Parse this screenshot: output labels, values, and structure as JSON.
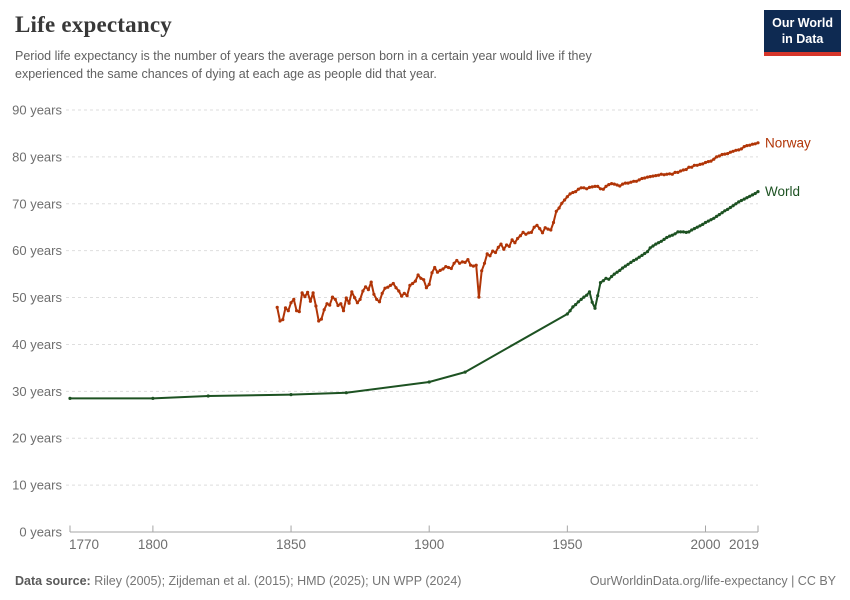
{
  "header": {
    "title": "Life expectancy",
    "subtitle": "Period life expectancy is the number of years the average person born in a certain year would live if they experienced the same chances of dying at each age as people did that year.",
    "logo": {
      "line1": "Our World",
      "line2": "in Data",
      "bg_color": "#0e2a52",
      "accent_color": "#d6352a"
    }
  },
  "footer": {
    "data_source_label": "Data source:",
    "data_source_text": " Riley (2005); Zijdeman et al. (2015); HMD (2025); UN WPP (2024)",
    "attribution": "OurWorldinData.org/life-expectancy | CC BY"
  },
  "chart_data": {
    "type": "line",
    "title": "Life expectancy",
    "xlabel": "",
    "ylabel": "",
    "grid": "dashed-horizontal",
    "legend_position": "line-end-labels",
    "x_axis": {
      "range": [
        1770,
        2019
      ],
      "ticks": [
        1770,
        1800,
        1850,
        1900,
        1950,
        2000,
        2019
      ]
    },
    "y_axis": {
      "range": [
        0,
        90
      ],
      "tick_values": [
        0,
        10,
        20,
        30,
        40,
        50,
        60,
        70,
        80,
        90
      ],
      "tick_suffix": " years"
    },
    "series": [
      {
        "name": "Norway",
        "color": "#b13507",
        "points": [
          [
            1845,
            47.9
          ],
          [
            1846,
            45.0
          ],
          [
            1847,
            45.3
          ],
          [
            1848,
            47.8
          ],
          [
            1849,
            47.2
          ],
          [
            1850,
            48.9
          ],
          [
            1851,
            49.6
          ],
          [
            1852,
            47.2
          ],
          [
            1853,
            47.0
          ],
          [
            1854,
            51.0
          ],
          [
            1855,
            50.2
          ],
          [
            1856,
            51.1
          ],
          [
            1857,
            49.2
          ],
          [
            1858,
            51.0
          ],
          [
            1859,
            48.2
          ],
          [
            1860,
            45.0
          ],
          [
            1861,
            45.4
          ],
          [
            1862,
            47.4
          ],
          [
            1863,
            48.7
          ],
          [
            1864,
            48.4
          ],
          [
            1865,
            50.1
          ],
          [
            1866,
            49.6
          ],
          [
            1867,
            48.3
          ],
          [
            1868,
            48.7
          ],
          [
            1869,
            47.2
          ],
          [
            1870,
            49.9
          ],
          [
            1871,
            48.8
          ],
          [
            1872,
            51.2
          ],
          [
            1873,
            50.0
          ],
          [
            1874,
            48.9
          ],
          [
            1875,
            49.6
          ],
          [
            1876,
            51.4
          ],
          [
            1877,
            52.3
          ],
          [
            1878,
            51.7
          ],
          [
            1879,
            53.3
          ],
          [
            1880,
            50.7
          ],
          [
            1881,
            49.6
          ],
          [
            1882,
            49.1
          ],
          [
            1883,
            50.9
          ],
          [
            1884,
            52.0
          ],
          [
            1885,
            52.2
          ],
          [
            1886,
            52.6
          ],
          [
            1887,
            53.0
          ],
          [
            1888,
            52.1
          ],
          [
            1889,
            51.4
          ],
          [
            1890,
            50.3
          ],
          [
            1891,
            50.9
          ],
          [
            1892,
            50.4
          ],
          [
            1893,
            52.6
          ],
          [
            1894,
            53.0
          ],
          [
            1895,
            53.5
          ],
          [
            1896,
            54.8
          ],
          [
            1897,
            54.1
          ],
          [
            1898,
            53.8
          ],
          [
            1899,
            52.1
          ],
          [
            1900,
            52.8
          ],
          [
            1901,
            55.3
          ],
          [
            1902,
            56.4
          ],
          [
            1903,
            55.4
          ],
          [
            1904,
            55.8
          ],
          [
            1905,
            56.1
          ],
          [
            1906,
            56.6
          ],
          [
            1907,
            56.4
          ],
          [
            1908,
            56.2
          ],
          [
            1909,
            57.3
          ],
          [
            1910,
            57.9
          ],
          [
            1911,
            57.3
          ],
          [
            1912,
            57.6
          ],
          [
            1913,
            57.5
          ],
          [
            1914,
            58.1
          ],
          [
            1915,
            56.9
          ],
          [
            1916,
            56.7
          ],
          [
            1917,
            56.9
          ],
          [
            1918,
            50.1
          ],
          [
            1919,
            55.7
          ],
          [
            1920,
            57.3
          ],
          [
            1921,
            59.3
          ],
          [
            1922,
            58.9
          ],
          [
            1923,
            59.9
          ],
          [
            1924,
            59.6
          ],
          [
            1925,
            60.7
          ],
          [
            1926,
            61.4
          ],
          [
            1927,
            60.3
          ],
          [
            1928,
            61.2
          ],
          [
            1929,
            60.9
          ],
          [
            1930,
            62.3
          ],
          [
            1931,
            61.7
          ],
          [
            1932,
            62.6
          ],
          [
            1933,
            63.2
          ],
          [
            1934,
            63.9
          ],
          [
            1935,
            63.5
          ],
          [
            1936,
            63.8
          ],
          [
            1937,
            63.9
          ],
          [
            1938,
            65.0
          ],
          [
            1939,
            65.4
          ],
          [
            1940,
            64.7
          ],
          [
            1941,
            63.8
          ],
          [
            1942,
            64.9
          ],
          [
            1943,
            64.6
          ],
          [
            1944,
            64.4
          ],
          [
            1945,
            66.0
          ],
          [
            1946,
            68.4
          ],
          [
            1947,
            69.1
          ],
          [
            1948,
            70.1
          ],
          [
            1949,
            70.8
          ],
          [
            1950,
            71.5
          ],
          [
            1951,
            72.1
          ],
          [
            1952,
            72.4
          ],
          [
            1953,
            72.6
          ],
          [
            1954,
            73.1
          ],
          [
            1955,
            73.4
          ],
          [
            1956,
            73.4
          ],
          [
            1957,
            73.2
          ],
          [
            1958,
            73.5
          ],
          [
            1959,
            73.6
          ],
          [
            1960,
            73.7
          ],
          [
            1961,
            73.7
          ],
          [
            1962,
            73.2
          ],
          [
            1963,
            73.1
          ],
          [
            1964,
            73.7
          ],
          [
            1965,
            74.1
          ],
          [
            1966,
            74.3
          ],
          [
            1967,
            74.2
          ],
          [
            1968,
            74.0
          ],
          [
            1969,
            73.8
          ],
          [
            1970,
            74.2
          ],
          [
            1971,
            74.4
          ],
          [
            1972,
            74.4
          ],
          [
            1973,
            74.6
          ],
          [
            1974,
            74.8
          ],
          [
            1975,
            74.8
          ],
          [
            1976,
            75.1
          ],
          [
            1977,
            75.4
          ],
          [
            1978,
            75.5
          ],
          [
            1979,
            75.7
          ],
          [
            1980,
            75.8
          ],
          [
            1981,
            75.9
          ],
          [
            1982,
            76.0
          ],
          [
            1983,
            76.1
          ],
          [
            1984,
            76.3
          ],
          [
            1985,
            76.2
          ],
          [
            1986,
            76.3
          ],
          [
            1987,
            76.4
          ],
          [
            1988,
            76.3
          ],
          [
            1989,
            76.7
          ],
          [
            1990,
            76.7
          ],
          [
            1991,
            77.0
          ],
          [
            1992,
            77.2
          ],
          [
            1993,
            77.3
          ],
          [
            1994,
            77.8
          ],
          [
            1995,
            77.8
          ],
          [
            1996,
            78.2
          ],
          [
            1997,
            78.2
          ],
          [
            1998,
            78.4
          ],
          [
            1999,
            78.5
          ],
          [
            2000,
            78.8
          ],
          [
            2001,
            79.0
          ],
          [
            2002,
            79.1
          ],
          [
            2003,
            79.5
          ],
          [
            2004,
            80.0
          ],
          [
            2005,
            80.2
          ],
          [
            2006,
            80.5
          ],
          [
            2007,
            80.6
          ],
          [
            2008,
            80.7
          ],
          [
            2009,
            81.0
          ],
          [
            2010,
            81.2
          ],
          [
            2011,
            81.4
          ],
          [
            2012,
            81.5
          ],
          [
            2013,
            81.7
          ],
          [
            2014,
            82.2
          ],
          [
            2015,
            82.4
          ],
          [
            2016,
            82.5
          ],
          [
            2017,
            82.7
          ],
          [
            2018,
            82.8
          ],
          [
            2019,
            83.0
          ]
        ]
      },
      {
        "name": "World",
        "color": "#1d5222",
        "points": [
          [
            1770,
            28.5
          ],
          [
            1800,
            28.5
          ],
          [
            1820,
            29.0
          ],
          [
            1850,
            29.3
          ],
          [
            1870,
            29.7
          ],
          [
            1900,
            32.0
          ],
          [
            1913,
            34.1
          ],
          [
            1950,
            46.5
          ],
          [
            1951,
            47.2
          ],
          [
            1952,
            48.0
          ],
          [
            1953,
            48.5
          ],
          [
            1954,
            49.1
          ],
          [
            1955,
            49.6
          ],
          [
            1956,
            50.1
          ],
          [
            1957,
            50.5
          ],
          [
            1958,
            51.2
          ],
          [
            1959,
            49.0
          ],
          [
            1960,
            47.7
          ],
          [
            1961,
            50.4
          ],
          [
            1962,
            53.2
          ],
          [
            1963,
            53.6
          ],
          [
            1964,
            54.1
          ],
          [
            1965,
            53.9
          ],
          [
            1966,
            54.5
          ],
          [
            1967,
            55.0
          ],
          [
            1968,
            55.4
          ],
          [
            1969,
            55.8
          ],
          [
            1970,
            56.3
          ],
          [
            1971,
            56.7
          ],
          [
            1972,
            57.1
          ],
          [
            1973,
            57.5
          ],
          [
            1974,
            57.9
          ],
          [
            1975,
            58.2
          ],
          [
            1976,
            58.6
          ],
          [
            1977,
            59.0
          ],
          [
            1978,
            59.4
          ],
          [
            1979,
            59.8
          ],
          [
            1980,
            60.6
          ],
          [
            1981,
            61.0
          ],
          [
            1982,
            61.4
          ],
          [
            1983,
            61.7
          ],
          [
            1984,
            62.0
          ],
          [
            1985,
            62.4
          ],
          [
            1986,
            62.8
          ],
          [
            1987,
            63.1
          ],
          [
            1988,
            63.3
          ],
          [
            1989,
            63.6
          ],
          [
            1990,
            64.0
          ],
          [
            1991,
            64.0
          ],
          [
            1992,
            64.0
          ],
          [
            1993,
            63.9
          ],
          [
            1994,
            64.0
          ],
          [
            1995,
            64.4
          ],
          [
            1996,
            64.7
          ],
          [
            1997,
            65.0
          ],
          [
            1998,
            65.3
          ],
          [
            1999,
            65.6
          ],
          [
            2000,
            66.0
          ],
          [
            2001,
            66.3
          ],
          [
            2002,
            66.6
          ],
          [
            2003,
            66.9
          ],
          [
            2004,
            67.3
          ],
          [
            2005,
            67.7
          ],
          [
            2006,
            68.1
          ],
          [
            2007,
            68.5
          ],
          [
            2008,
            68.8
          ],
          [
            2009,
            69.2
          ],
          [
            2010,
            69.6
          ],
          [
            2011,
            70.0
          ],
          [
            2012,
            70.4
          ],
          [
            2013,
            70.7
          ],
          [
            2014,
            71.0
          ],
          [
            2015,
            71.3
          ],
          [
            2016,
            71.6
          ],
          [
            2017,
            71.9
          ],
          [
            2018,
            72.2
          ],
          [
            2019,
            72.6
          ]
        ]
      }
    ]
  }
}
